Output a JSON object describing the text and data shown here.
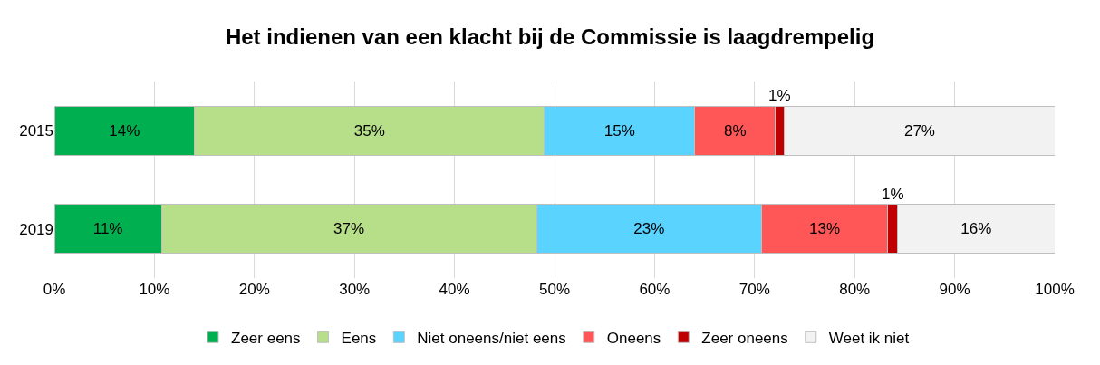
{
  "chart_data": {
    "type": "bar",
    "title": "Het indienen van een klacht bij de Commissie is laagdrempelig",
    "orientation": "horizontal",
    "stacked": true,
    "categories": [
      "2015",
      "2019"
    ],
    "series": [
      {
        "name": "Zeer eens",
        "color": "#00b050",
        "values": [
          14,
          10.7
        ],
        "value_labels": [
          "14%",
          "11%"
        ]
      },
      {
        "name": "Eens",
        "color": "#b7df8a",
        "values": [
          35,
          37.5
        ],
        "value_labels": [
          "35%",
          "37%"
        ]
      },
      {
        "name": "Niet oneens/niet eens",
        "color": "#5bd3ff",
        "values": [
          15,
          22.5
        ],
        "value_labels": [
          "15%",
          "23%"
        ]
      },
      {
        "name": "Oneens",
        "color": "#ff5757",
        "values": [
          8.1,
          12.6
        ],
        "value_labels": [
          "8%",
          "13%"
        ]
      },
      {
        "name": "Zeer oneens",
        "color": "#c00000",
        "values": [
          0.9,
          1.0
        ],
        "value_labels": [
          "1%",
          "1%"
        ]
      },
      {
        "name": "Weet ik niet",
        "color": "#f2f2f2",
        "values": [
          27,
          15.7
        ],
        "value_labels": [
          "27%",
          "16%"
        ]
      }
    ],
    "xlim": [
      0,
      100
    ],
    "xticks": [
      {
        "value": 0,
        "label": "0%"
      },
      {
        "value": 10,
        "label": "10%"
      },
      {
        "value": 20,
        "label": "20%"
      },
      {
        "value": 30,
        "label": "30%"
      },
      {
        "value": 40,
        "label": "40%"
      },
      {
        "value": 50,
        "label": "50%"
      },
      {
        "value": 60,
        "label": "60%"
      },
      {
        "value": 70,
        "label": "70%"
      },
      {
        "value": 80,
        "label": "80%"
      },
      {
        "value": 90,
        "label": "90%"
      },
      {
        "value": 100,
        "label": "100%"
      }
    ],
    "grid": "x",
    "legend": "bottom"
  }
}
